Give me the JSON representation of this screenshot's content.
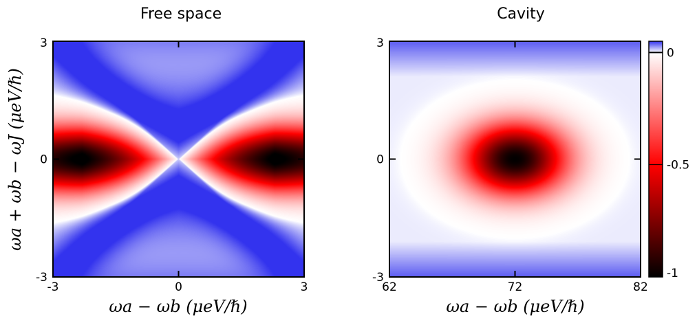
{
  "chart_data": [
    {
      "type": "heatmap",
      "title": "Free space",
      "xlabel": "ωa − ωb (μeV/ℏ)",
      "ylabel": "ωa + ωb − ωJ (μeV/ℏ)",
      "xlim": [
        -3,
        3
      ],
      "ylim": [
        -3,
        3
      ],
      "xticks": [
        "-3",
        "0",
        "3"
      ],
      "yticks": [
        "-3",
        "0",
        "3"
      ],
      "features": [
        {
          "shape": "bowtie",
          "x_center": 0,
          "y_center": 0,
          "min_value": -1,
          "min_location": [
            -2.4,
            0
          ],
          "max_value": 0.05
        }
      ]
    },
    {
      "type": "heatmap",
      "title": "Cavity",
      "xlabel": "ωa − ωb (μeV/ℏ)",
      "xlim": [
        62,
        82
      ],
      "ylim": [
        -3,
        3
      ],
      "xticks": [
        "62",
        "72",
        "82"
      ],
      "yticks": [
        "-3",
        "0",
        "3"
      ],
      "features": [
        {
          "shape": "elliptical",
          "x_center": 72,
          "y_center": 0,
          "min_value": -1,
          "max_value": 0.05
        }
      ]
    }
  ],
  "colorbar": {
    "range": [
      -1,
      0.05
    ],
    "colors": {
      "min": "#000000",
      "mid": "#ff0000",
      "zero": "#ffffff",
      "max": "#3333ee"
    },
    "tick_values": [
      0,
      -0.5,
      -1
    ],
    "tick_labels": [
      "0",
      "-0.5",
      "-1"
    ]
  }
}
